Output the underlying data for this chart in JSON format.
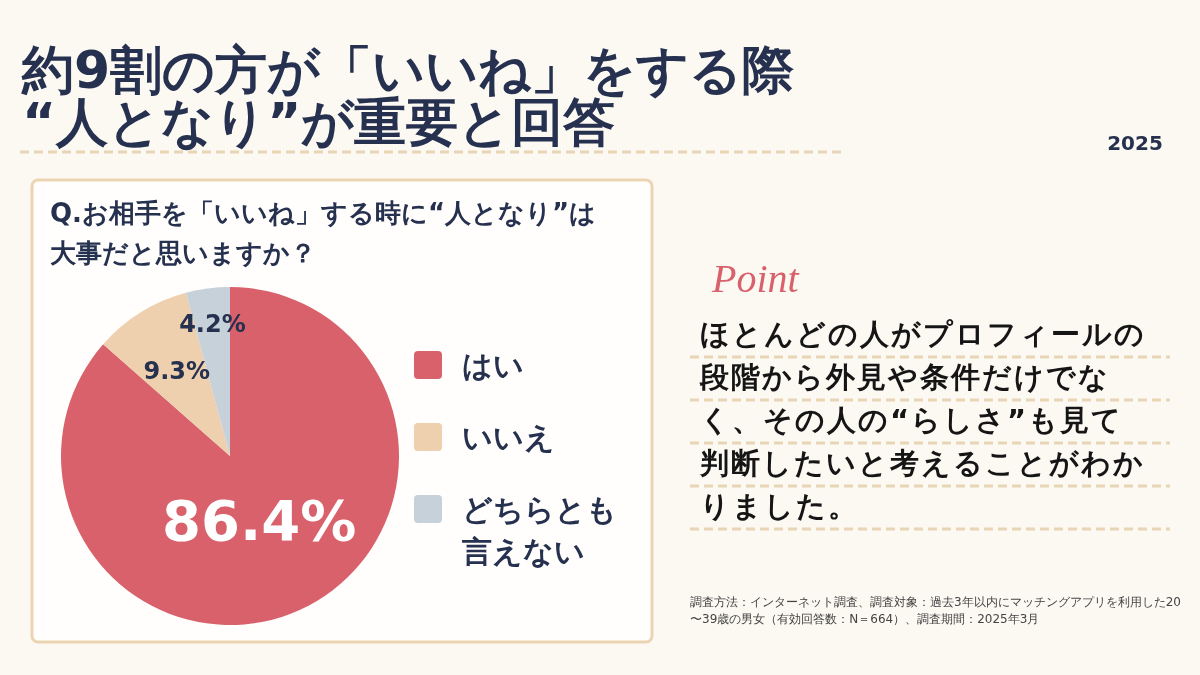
{
  "chart_data": {
    "type": "pie",
    "title": "約9割の方が「いいね」をする際\n“人となり”が重要と回答",
    "subtitle": "Q.お相手を「いいね」する時に“人となり”は大事だと思いますか？",
    "categories": [
      "はい",
      "いいえ",
      "どちらとも言えない"
    ],
    "values": [
      86.4,
      9.3,
      4.2
    ],
    "colors": [
      "#d9616b",
      "#eecfae",
      "#c7d1d9"
    ],
    "value_labels": [
      "86.4%",
      "9.3%",
      "4.2%"
    ],
    "legend": "right",
    "annotations": [
      "Point",
      "ほとんどの人がプロフィールの段階から外見や条件だけでなく、その人の“らしさ”も見て判断したいと考えることがわかりました。",
      "調査方法：インターネット調査、調査対象：過去3年以内にマッチングアプリを利用した20〜39歳の男女（有効回答数：N＝664）、調査期間：2025年3月",
      "2025"
    ]
  }
}
